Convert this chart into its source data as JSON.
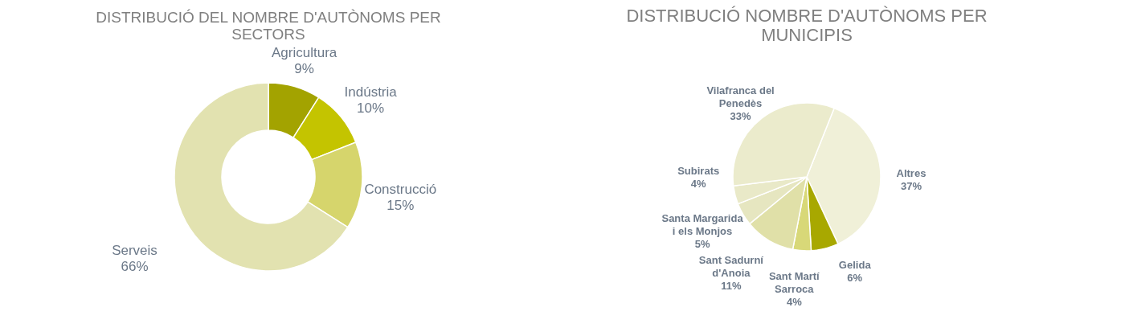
{
  "chart_data": [
    {
      "type": "donut",
      "title": "DISTRIBUCIÓ DEL NOMBRE D'AUTÒNOMS PER SECTORS",
      "categories": [
        "Agricultura",
        "Indústria",
        "Construcció",
        "Serveis"
      ],
      "values": [
        9,
        10,
        15,
        66
      ],
      "value_labels": [
        "9%",
        "10%",
        "15%",
        "66%"
      ],
      "colors": [
        "#a3a300",
        "#c4c400",
        "#d6d56c",
        "#e2e2b0"
      ]
    },
    {
      "type": "pie",
      "title": "DISTRIBUCIÓ NOMBRE D'AUTÒNOMS PER MUNICIPIS",
      "categories": [
        "Altres",
        "Gelida",
        "Sant Martí Sarroca",
        "Sant Sadurní d'Anoia",
        "Santa Margarida i els Monjos",
        "Subirats",
        "Vilafranca del Penedès"
      ],
      "values": [
        37,
        6,
        4,
        11,
        5,
        4,
        33
      ],
      "value_labels": [
        "37%",
        "6%",
        "4%",
        "11%",
        "5%",
        "4%",
        "33%"
      ],
      "colors": [
        "#f0f0d8",
        "#a8a800",
        "#d8d878",
        "#e0e0a8",
        "#e6e6c0",
        "#e9e9c8",
        "#ebebcc"
      ]
    }
  ]
}
